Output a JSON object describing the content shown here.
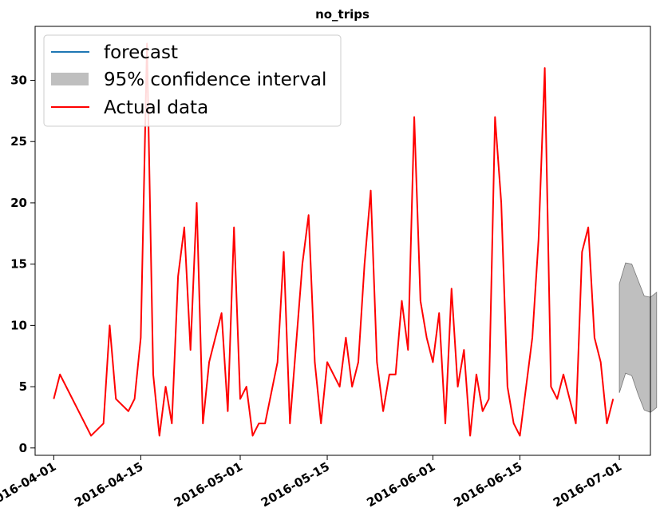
{
  "chart_data": {
    "type": "line",
    "title": "no_trips",
    "xlabel": "",
    "ylabel": "",
    "x_axis_type": "date",
    "xlim": [
      "2016-03-29",
      "2016-07-06"
    ],
    "ylim": [
      -0.6,
      34.4
    ],
    "x_ticks": [
      "2016-04-01",
      "2016-04-15",
      "2016-05-01",
      "2016-05-15",
      "2016-06-01",
      "2016-06-15",
      "2016-07-01"
    ],
    "y_ticks": [
      0,
      5,
      10,
      15,
      20,
      25,
      30
    ],
    "grid": false,
    "legend": {
      "placement": "top-left",
      "entries": [
        {
          "label": "forecast",
          "kind": "line",
          "color": "#1f77b4"
        },
        {
          "label": "95% confidence interval",
          "kind": "patch",
          "color": "#bfbfbf"
        },
        {
          "label": "Actual data",
          "kind": "line",
          "color": "#ff0000"
        }
      ]
    },
    "series": [
      {
        "name": "Actual data",
        "kind": "line",
        "color": "#ff0000",
        "points": [
          [
            "2016-04-01",
            4
          ],
          [
            "2016-04-02",
            6
          ],
          [
            "2016-04-07",
            1
          ],
          [
            "2016-04-09",
            2
          ],
          [
            "2016-04-10",
            10
          ],
          [
            "2016-04-11",
            4
          ],
          [
            "2016-04-13",
            3
          ],
          [
            "2016-04-14",
            4
          ],
          [
            "2016-04-15",
            9
          ],
          [
            "2016-04-16",
            33
          ],
          [
            "2016-04-17",
            6
          ],
          [
            "2016-04-18",
            1
          ],
          [
            "2016-04-19",
            5
          ],
          [
            "2016-04-20",
            2
          ],
          [
            "2016-04-21",
            14
          ],
          [
            "2016-04-22",
            18
          ],
          [
            "2016-04-23",
            8
          ],
          [
            "2016-04-24",
            20
          ],
          [
            "2016-04-25",
            2
          ],
          [
            "2016-04-26",
            7
          ],
          [
            "2016-04-28",
            11
          ],
          [
            "2016-04-29",
            3
          ],
          [
            "2016-04-30",
            18
          ],
          [
            "2016-05-01",
            4
          ],
          [
            "2016-05-02",
            5
          ],
          [
            "2016-05-03",
            1
          ],
          [
            "2016-05-04",
            2
          ],
          [
            "2016-05-05",
            2
          ],
          [
            "2016-05-07",
            7
          ],
          [
            "2016-05-08",
            16
          ],
          [
            "2016-05-09",
            2
          ],
          [
            "2016-05-11",
            15
          ],
          [
            "2016-05-12",
            19
          ],
          [
            "2016-05-13",
            7
          ],
          [
            "2016-05-14",
            2
          ],
          [
            "2016-05-15",
            7
          ],
          [
            "2016-05-17",
            5
          ],
          [
            "2016-05-18",
            9
          ],
          [
            "2016-05-19",
            5
          ],
          [
            "2016-05-20",
            7
          ],
          [
            "2016-05-21",
            15
          ],
          [
            "2016-05-22",
            21
          ],
          [
            "2016-05-23",
            7
          ],
          [
            "2016-05-24",
            3
          ],
          [
            "2016-05-25",
            6
          ],
          [
            "2016-05-26",
            6
          ],
          [
            "2016-05-27",
            12
          ],
          [
            "2016-05-28",
            8
          ],
          [
            "2016-05-29",
            27
          ],
          [
            "2016-05-30",
            12
          ],
          [
            "2016-05-31",
            9
          ],
          [
            "2016-06-01",
            7
          ],
          [
            "2016-06-02",
            11
          ],
          [
            "2016-06-03",
            2
          ],
          [
            "2016-06-04",
            13
          ],
          [
            "2016-06-05",
            5
          ],
          [
            "2016-06-06",
            8
          ],
          [
            "2016-06-07",
            1
          ],
          [
            "2016-06-08",
            6
          ],
          [
            "2016-06-09",
            3
          ],
          [
            "2016-06-10",
            4
          ],
          [
            "2016-06-11",
            27
          ],
          [
            "2016-06-12",
            20
          ],
          [
            "2016-06-13",
            5
          ],
          [
            "2016-06-14",
            2
          ],
          [
            "2016-06-15",
            1
          ],
          [
            "2016-06-17",
            9
          ],
          [
            "2016-06-18",
            17
          ],
          [
            "2016-06-19",
            31
          ],
          [
            "2016-06-20",
            5
          ],
          [
            "2016-06-21",
            4
          ],
          [
            "2016-06-22",
            6
          ],
          [
            "2016-06-24",
            2
          ],
          [
            "2016-06-25",
            16
          ],
          [
            "2016-06-26",
            18
          ],
          [
            "2016-06-27",
            9
          ],
          [
            "2016-06-28",
            7
          ],
          [
            "2016-06-29",
            2
          ],
          [
            "2016-06-30",
            4
          ]
        ]
      },
      {
        "name": "95% confidence interval",
        "kind": "band",
        "color": "#bfbfbf",
        "points": [
          [
            "2016-07-01",
            4.5,
            13.4
          ],
          [
            "2016-07-02",
            6.1,
            15.1
          ],
          [
            "2016-07-03",
            5.9,
            15.0
          ],
          [
            "2016-07-04",
            4.4,
            13.7
          ],
          [
            "2016-07-05",
            3.1,
            12.4
          ],
          [
            "2016-07-06",
            2.9,
            12.3
          ],
          [
            "2016-07-07",
            3.3,
            12.7
          ]
        ]
      }
    ]
  }
}
